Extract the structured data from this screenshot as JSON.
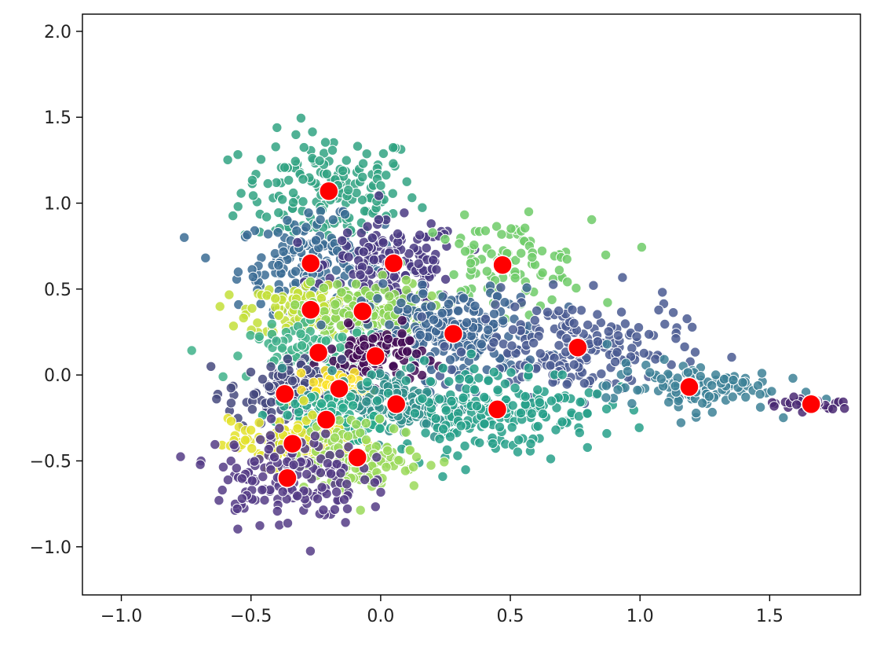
{
  "chart_data": {
    "type": "scatter",
    "title": "",
    "xlabel": "",
    "ylabel": "",
    "xlim": [
      -1.15,
      1.85
    ],
    "ylim": [
      -1.28,
      2.1
    ],
    "x_ticks": [
      -1.0,
      -0.5,
      0.0,
      0.5,
      1.0,
      1.5
    ],
    "x_tick_labels": [
      "−1.0",
      "−0.5",
      "0.0",
      "0.5",
      "1.0",
      "1.5"
    ],
    "y_ticks": [
      -1.0,
      -0.5,
      0.0,
      0.5,
      1.0,
      1.5,
      2.0
    ],
    "y_tick_labels": [
      "−1.0",
      "−0.5",
      "0.0",
      "0.5",
      "1.0",
      "1.5",
      "2.0"
    ],
    "grid": false,
    "legend": "none",
    "colormap": "viridis",
    "series": [
      {
        "marker_color": "#ff0000",
        "points": [
          [
            -0.2,
            1.07
          ],
          [
            -0.27,
            0.65
          ],
          [
            0.05,
            0.65
          ],
          [
            0.47,
            0.64
          ],
          [
            -0.27,
            0.38
          ],
          [
            -0.07,
            0.37
          ],
          [
            0.28,
            0.24
          ],
          [
            -0.24,
            0.13
          ],
          [
            -0.02,
            0.11
          ],
          [
            0.76,
            0.16
          ],
          [
            -0.37,
            -0.11
          ],
          [
            -0.16,
            -0.08
          ],
          [
            0.06,
            -0.17
          ],
          [
            0.45,
            -0.2
          ],
          [
            -0.21,
            -0.26
          ],
          [
            1.19,
            -0.07
          ],
          [
            1.66,
            -0.17
          ],
          [
            -0.34,
            -0.4
          ],
          [
            -0.09,
            -0.48
          ],
          [
            -0.36,
            -0.6
          ]
        ]
      }
    ],
    "clusters": [
      {
        "center": [
          -0.2,
          1.07
        ],
        "color": "#31a383",
        "spread": [
          0.17,
          0.17
        ],
        "n": 170
      },
      {
        "center": [
          -0.27,
          0.65
        ],
        "color": "#3b6c94",
        "spread": [
          0.14,
          0.13
        ],
        "n": 170
      },
      {
        "center": [
          0.05,
          0.65
        ],
        "color": "#4a3a82",
        "spread": [
          0.13,
          0.12
        ],
        "n": 150
      },
      {
        "center": [
          0.47,
          0.64
        ],
        "color": "#6fcb68",
        "spread": [
          0.17,
          0.13
        ],
        "n": 100
      },
      {
        "center": [
          -0.27,
          0.38
        ],
        "color": "#c3df3a",
        "spread": [
          0.12,
          0.08
        ],
        "n": 130
      },
      {
        "center": [
          -0.07,
          0.37
        ],
        "color": "#8cd456",
        "spread": [
          0.12,
          0.09
        ],
        "n": 120
      },
      {
        "center": [
          0.28,
          0.24
        ],
        "color": "#3d6693",
        "spread": [
          0.17,
          0.13
        ],
        "n": 220
      },
      {
        "center": [
          -0.24,
          0.13
        ],
        "color": "#3fb28a",
        "spread": [
          0.13,
          0.08
        ],
        "n": 120
      },
      {
        "center": [
          -0.02,
          0.11
        ],
        "color": "#440d56",
        "spread": [
          0.09,
          0.08
        ],
        "n": 100
      },
      {
        "center": [
          0.76,
          0.16
        ],
        "color": "#4a5a92",
        "spread": [
          0.2,
          0.14
        ],
        "n": 200
      },
      {
        "center": [
          -0.37,
          -0.11
        ],
        "color": "#45497e",
        "spread": [
          0.11,
          0.1
        ],
        "n": 130
      },
      {
        "center": [
          -0.16,
          -0.08
        ],
        "color": "#fbe32a",
        "spread": [
          0.06,
          0.05
        ],
        "n": 60
      },
      {
        "center": [
          0.06,
          -0.17
        ],
        "color": "#2f8d8a",
        "spread": [
          0.13,
          0.1
        ],
        "n": 150
      },
      {
        "center": [
          0.45,
          -0.2
        ],
        "color": "#27a08a",
        "spread": [
          0.2,
          0.13
        ],
        "n": 190
      },
      {
        "center": [
          -0.21,
          -0.26
        ],
        "color": "#29a98b",
        "spread": [
          0.1,
          0.08
        ],
        "n": 100
      },
      {
        "center": [
          1.19,
          -0.07
        ],
        "color": "#3d8196",
        "spread": [
          0.16,
          0.07
        ],
        "n": 110
      },
      {
        "center": [
          1.66,
          -0.17
        ],
        "color": "#4a2973",
        "spread": [
          0.1,
          0.02
        ],
        "n": 30
      },
      {
        "center": [
          -0.34,
          -0.4
        ],
        "color": "#e3e22b",
        "spread": [
          0.12,
          0.07
        ],
        "n": 120
      },
      {
        "center": [
          -0.09,
          -0.48
        ],
        "color": "#9bd95a",
        "spread": [
          0.13,
          0.1
        ],
        "n": 130
      },
      {
        "center": [
          -0.36,
          -0.6
        ],
        "color": "#553c86",
        "spread": [
          0.14,
          0.14
        ],
        "n": 170
      }
    ]
  }
}
